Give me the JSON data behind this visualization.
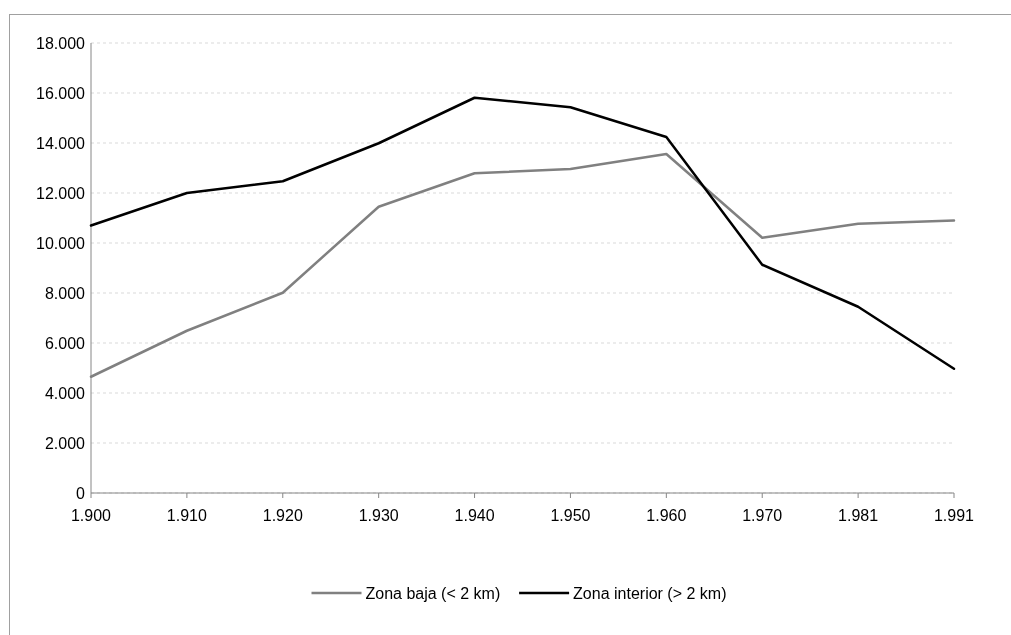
{
  "chart_data": {
    "type": "line",
    "categories": [
      "1.900",
      "1.910",
      "1.920",
      "1.930",
      "1.940",
      "1.950",
      "1.960",
      "1.970",
      "1.981",
      "1.991"
    ],
    "series": [
      {
        "name": "Zona baja (< 2 km)",
        "color": "#808080",
        "values": [
          4650,
          6490,
          8010,
          11450,
          12790,
          12960,
          13560,
          10210,
          10770,
          10900
        ]
      },
      {
        "name": "Zona interior (> 2 km)",
        "color": "#000000",
        "values": [
          10700,
          12000,
          12470,
          13990,
          15810,
          15430,
          14240,
          9130,
          7450,
          4970
        ]
      }
    ],
    "ylim": [
      0,
      18000
    ],
    "yticks": [
      0,
      {
        "value": 2000,
        "label": "2.000"
      },
      {
        "value": 4000,
        "label": "4.000"
      },
      {
        "value": 6000,
        "label": "6.000"
      },
      {
        "value": 8000,
        "label": "8.000"
      },
      {
        "value": 10000,
        "label": "10.000"
      },
      {
        "value": 12000,
        "label": "12.000"
      },
      {
        "value": 14000,
        "label": "14.000"
      },
      {
        "value": 16000,
        "label": "16.000"
      },
      {
        "value": 18000,
        "label": "18.000"
      }
    ],
    "grid": "y",
    "legend": "bottom",
    "marker": "none",
    "line_style": "solid"
  }
}
